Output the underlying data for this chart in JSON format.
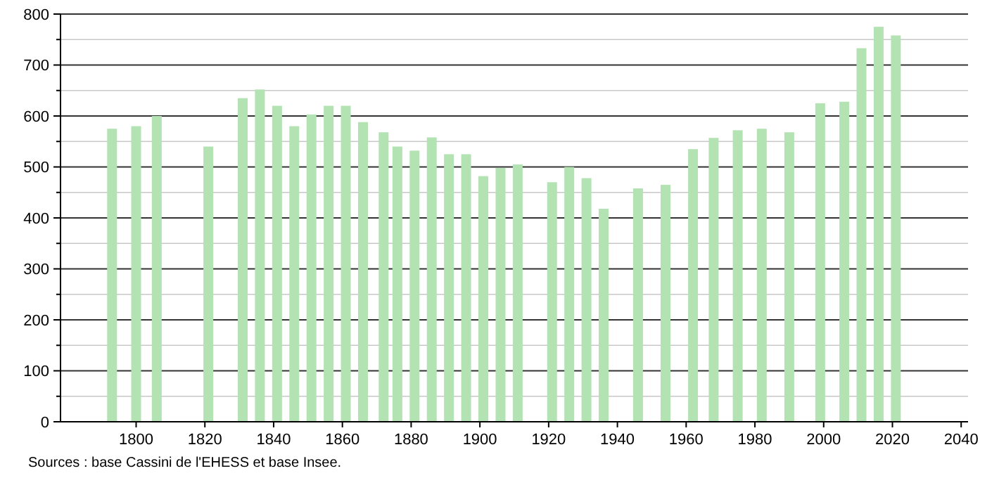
{
  "chart_data": {
    "type": "bar",
    "x": [
      1793,
      1800,
      1806,
      1821,
      1831,
      1836,
      1841,
      1846,
      1851,
      1856,
      1861,
      1866,
      1872,
      1876,
      1881,
      1886,
      1891,
      1896,
      1901,
      1906,
      1911,
      1921,
      1926,
      1931,
      1936,
      1946,
      1954,
      1962,
      1968,
      1975,
      1982,
      1990,
      1999,
      2006,
      2011,
      2016,
      2021
    ],
    "values": [
      575,
      580,
      600,
      540,
      635,
      652,
      620,
      580,
      603,
      620,
      620,
      588,
      568,
      540,
      532,
      558,
      525,
      525,
      482,
      498,
      505,
      470,
      500,
      478,
      418,
      458,
      465,
      535,
      557,
      572,
      575,
      568,
      625,
      628,
      733,
      775,
      758
    ],
    "color": "#b3e3b3",
    "xlim": [
      1778,
      2042
    ],
    "xticks": [
      1800,
      1820,
      1840,
      1860,
      1880,
      1900,
      1920,
      1940,
      1960,
      1980,
      2000,
      2020,
      2040
    ],
    "ylim": [
      0,
      800
    ],
    "yticks": [
      0,
      {
        "value": 50,
        "label": null
      },
      100,
      {
        "value": 150,
        "label": null
      },
      200,
      {
        "value": 250,
        "label": null
      },
      300,
      {
        "value": 350,
        "label": null
      },
      400,
      {
        "value": 450,
        "label": null
      },
      500,
      {
        "value": 550,
        "label": null
      },
      600,
      {
        "value": 650,
        "label": null
      },
      700,
      {
        "value": 750,
        "label": null
      },
      800
    ],
    "grid": true,
    "annotations": [
      "Sources : base Cassini de l'EHESS et base Insee."
    ]
  }
}
